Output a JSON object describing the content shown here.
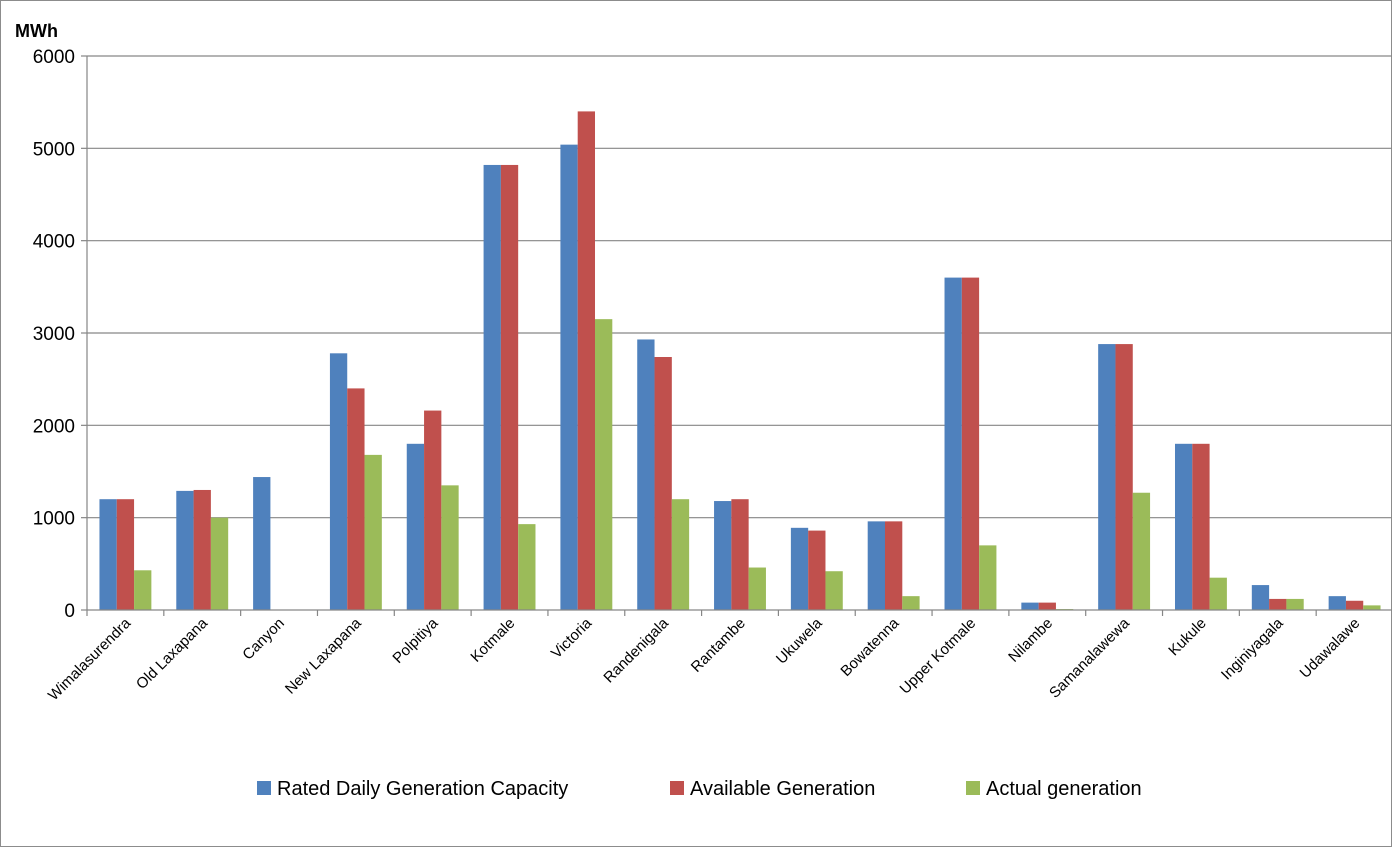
{
  "chart_data": {
    "type": "bar",
    "unit_label": "MWh",
    "ylim": [
      0,
      6000
    ],
    "yticks": [
      0,
      1000,
      2000,
      3000,
      4000,
      5000,
      6000
    ],
    "grid": true,
    "legend_position": "bottom",
    "categories": [
      "Wimalasurendra",
      "Old Laxapana",
      "Canyon",
      "New Laxapana",
      "Polpitiya",
      "Kotmale",
      "Victoria",
      "Randenigala",
      "Rantambe",
      "Ukuwela",
      "Bowatenna",
      "Upper Kotmale",
      "Nilambe",
      "Samanalawewa",
      "Kukule",
      "Inginiyagala",
      "Udawalawe"
    ],
    "series": [
      {
        "name": "Rated Daily Generation Capacity",
        "color": "#4f81bd",
        "values": [
          1200,
          1290,
          1440,
          2780,
          1800,
          4820,
          5040,
          2930,
          1180,
          890,
          960,
          3600,
          80,
          2880,
          1800,
          270,
          150
        ]
      },
      {
        "name": "Available Generation",
        "color": "#c0504d",
        "values": [
          1200,
          1300,
          0,
          2400,
          2160,
          4820,
          5400,
          2740,
          1200,
          860,
          960,
          3600,
          80,
          2880,
          1800,
          120,
          100
        ]
      },
      {
        "name": "Actual generation",
        "color": "#9bbb59",
        "values": [
          430,
          1000,
          0,
          1680,
          1350,
          930,
          3150,
          1200,
          460,
          420,
          150,
          700,
          10,
          1270,
          350,
          120,
          50
        ]
      }
    ]
  }
}
